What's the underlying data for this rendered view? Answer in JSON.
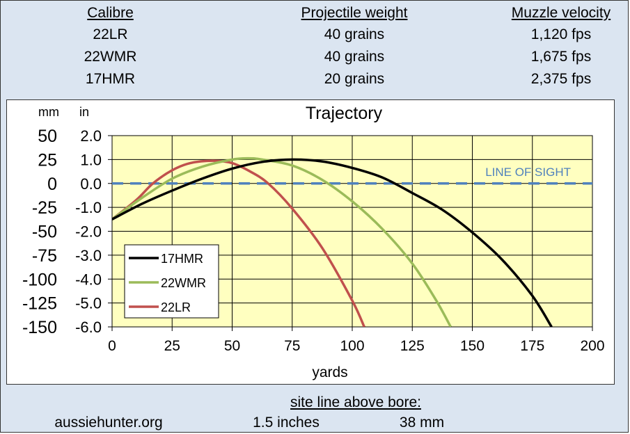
{
  "header": {
    "columns": [
      "Calibre",
      "Projectile weight",
      "Muzzle velocity"
    ],
    "rows": [
      [
        "22LR",
        "40 grains",
        "1,120 fps"
      ],
      [
        "22WMR",
        "40 grains",
        "1,675 fps"
      ],
      [
        "17HMR",
        "20 grains",
        "2,375 fps"
      ]
    ]
  },
  "footer": {
    "site_label": "site line above bore:",
    "website": "aussiehunter.org",
    "inches": "1.5 inches",
    "mm": "38 mm"
  },
  "chart_data": {
    "type": "line",
    "title": "Trajectory",
    "xlabel": "yards",
    "ylabel_left_unit": "mm",
    "ylabel_right_unit": "in",
    "xlim": [
      0,
      200
    ],
    "ylim": [
      -6,
      2
    ],
    "x_ticks": [
      "0",
      "25",
      "50",
      "75",
      "100",
      "125",
      "150",
      "175",
      "200"
    ],
    "y_ticks_in": [
      "2.0",
      "1.0",
      "0.0",
      "-1.0",
      "-2.0",
      "-3.0",
      "-4.0",
      "-5.0",
      "-6.0"
    ],
    "y_ticks_mm": [
      "50",
      "25",
      "0",
      "-25",
      "-50",
      "-75",
      "-100",
      "-125",
      "-150"
    ],
    "grid": true,
    "plot_bg": "#ffffc0",
    "line_of_sight": {
      "label": "LINE OF SIGHT",
      "y": 0,
      "color": "#4f81bd"
    },
    "legend_placement": "bottom-left",
    "series": [
      {
        "name": "17HMR",
        "color": "#000000",
        "points": [
          [
            0,
            -1.5
          ],
          [
            12.5,
            -0.85
          ],
          [
            25,
            -0.3
          ],
          [
            37.5,
            0.2
          ],
          [
            50,
            0.62
          ],
          [
            62.5,
            0.9
          ],
          [
            75,
            1.0
          ],
          [
            87.5,
            0.92
          ],
          [
            100,
            0.65
          ],
          [
            112.5,
            0.25
          ],
          [
            125,
            -0.4
          ],
          [
            137.5,
            -1.1
          ],
          [
            150,
            -2.05
          ],
          [
            162.5,
            -3.2
          ],
          [
            175,
            -4.7
          ],
          [
            183,
            -6.0
          ]
        ]
      },
      {
        "name": "22WMR",
        "color": "#9bbb59",
        "points": [
          [
            0,
            -1.5
          ],
          [
            12.5,
            -0.6
          ],
          [
            25,
            0.2
          ],
          [
            37.5,
            0.7
          ],
          [
            50,
            1.0
          ],
          [
            57,
            1.05
          ],
          [
            62.5,
            1.0
          ],
          [
            75,
            0.75
          ],
          [
            87.5,
            0.15
          ],
          [
            100,
            -0.75
          ],
          [
            112.5,
            -1.9
          ],
          [
            125,
            -3.35
          ],
          [
            135,
            -4.9
          ],
          [
            141,
            -6.0
          ]
        ]
      },
      {
        "name": "22LR",
        "color": "#c0504d",
        "points": [
          [
            0,
            -1.5
          ],
          [
            10,
            -0.7
          ],
          [
            17,
            0
          ],
          [
            25,
            0.55
          ],
          [
            32.5,
            0.85
          ],
          [
            42,
            0.95
          ],
          [
            50,
            0.85
          ],
          [
            57.5,
            0.5
          ],
          [
            65,
            0
          ],
          [
            75,
            -1.05
          ],
          [
            87.5,
            -2.7
          ],
          [
            100,
            -4.9
          ],
          [
            105,
            -6.0
          ]
        ]
      }
    ]
  }
}
